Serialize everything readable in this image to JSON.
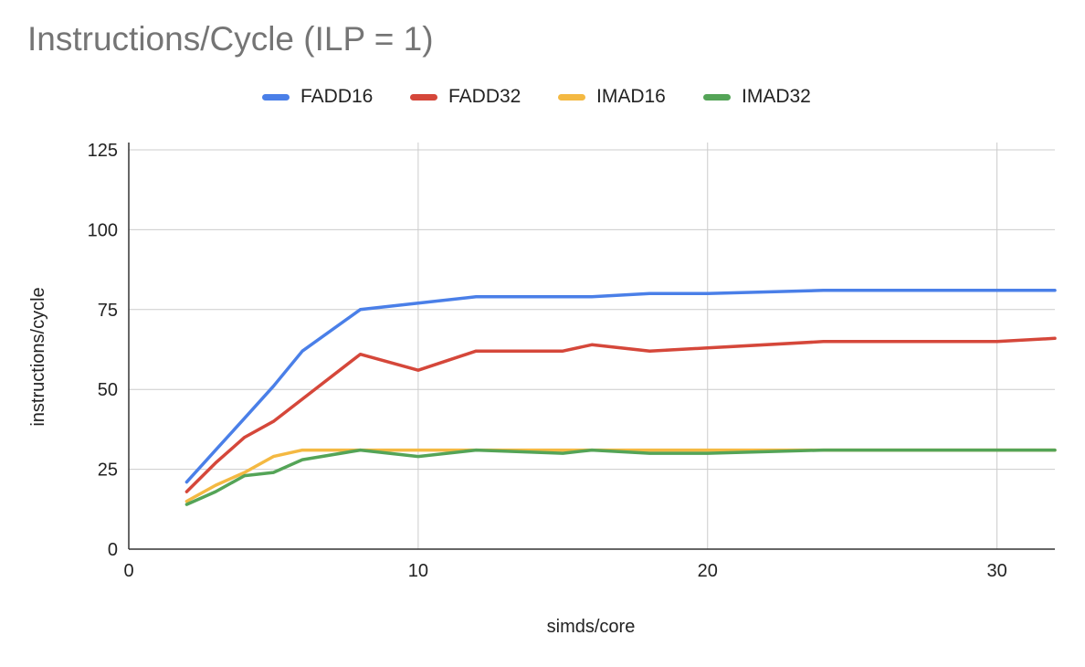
{
  "chart_data": {
    "type": "line",
    "title": "Instructions/Cycle (ILP = 1)",
    "xlabel": "simds/core",
    "ylabel": "instructions/cycle",
    "xlim": [
      0,
      32
    ],
    "ylim": [
      0,
      125
    ],
    "xticks": [
      0,
      10,
      20,
      30
    ],
    "yticks": [
      0,
      25,
      50,
      75,
      100,
      125
    ],
    "grid": true,
    "legend_position": "top",
    "x": [
      2,
      3,
      4,
      5,
      6,
      8,
      10,
      12,
      15,
      16,
      18,
      20,
      24,
      30,
      32
    ],
    "series": [
      {
        "name": "FADD16",
        "color": "#4a7fe8",
        "values": [
          21,
          31,
          41,
          51,
          62,
          75,
          77,
          79,
          79,
          79,
          80,
          80,
          81,
          81,
          81
        ]
      },
      {
        "name": "FADD32",
        "color": "#d5473a",
        "values": [
          18,
          27,
          35,
          40,
          47,
          61,
          56,
          62,
          62,
          64,
          62,
          63,
          65,
          65,
          66
        ]
      },
      {
        "name": "IMAD16",
        "color": "#f4b942",
        "values": [
          15,
          20,
          24,
          29,
          31,
          31,
          31,
          31,
          31,
          31,
          31,
          31,
          31,
          31,
          31
        ]
      },
      {
        "name": "IMAD32",
        "color": "#54a457",
        "values": [
          14,
          18,
          23,
          24,
          28,
          31,
          29,
          31,
          30,
          31,
          30,
          30,
          31,
          31,
          31
        ]
      }
    ]
  }
}
